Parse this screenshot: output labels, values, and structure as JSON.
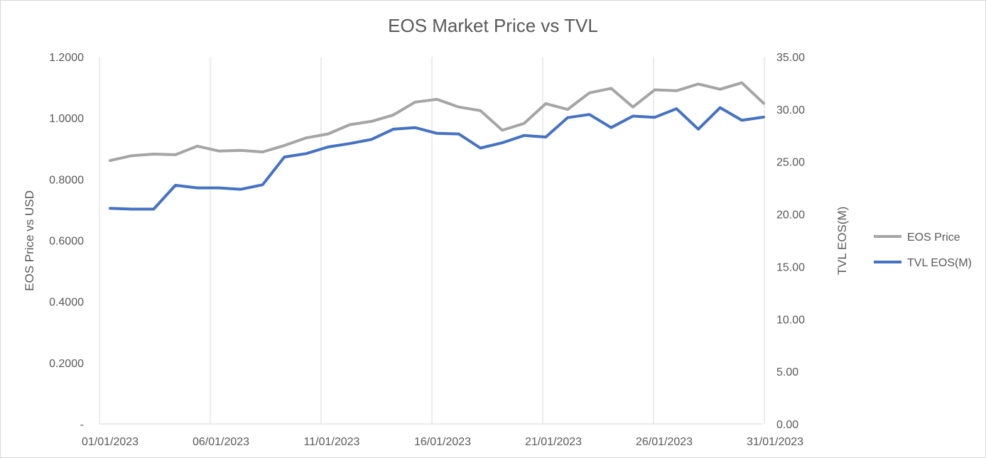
{
  "chart_data": {
    "type": "line",
    "title": "EOS Market Price vs TVL",
    "ylabel": "EOS Price vs USD",
    "y2label": "TVL EOS(M)",
    "xlabel": "",
    "x": [
      "01/01/2023",
      "02/01/2023",
      "03/01/2023",
      "04/01/2023",
      "05/01/2023",
      "06/01/2023",
      "07/01/2023",
      "08/01/2023",
      "09/01/2023",
      "10/01/2023",
      "11/01/2023",
      "12/01/2023",
      "13/01/2023",
      "14/01/2023",
      "15/01/2023",
      "16/01/2023",
      "17/01/2023",
      "18/01/2023",
      "19/01/2023",
      "20/01/2023",
      "21/01/2023",
      "22/01/2023",
      "23/01/2023",
      "24/01/2023",
      "25/01/2023",
      "26/01/2023",
      "27/01/2023",
      "28/01/2023",
      "29/01/2023",
      "30/01/2023",
      "31/01/2023"
    ],
    "x_tick_labels": [
      "01/01/2023",
      "06/01/2023",
      "11/01/2023",
      "16/01/2023",
      "21/01/2023",
      "26/01/2023",
      "31/01/2023"
    ],
    "ylim": [
      0,
      1.2
    ],
    "y_tick_labels": [
      "-",
      "0.2000",
      "0.4000",
      "0.6000",
      "0.8000",
      "1.0000",
      "1.2000"
    ],
    "y2lim": [
      0,
      35
    ],
    "y2_tick_labels": [
      "0.00",
      "5.00",
      "10.00",
      "15.00",
      "20.00",
      "25.00",
      "30.00",
      "35.00"
    ],
    "grid": "vertical",
    "legend_position": "right",
    "series": [
      {
        "name": "EOS Price",
        "axis": "left",
        "color": "#a5a5a5",
        "values": [
          0.861,
          0.877,
          0.882,
          0.88,
          0.908,
          0.892,
          0.894,
          0.889,
          0.91,
          0.935,
          0.948,
          0.978,
          0.989,
          1.01,
          1.052,
          1.061,
          1.036,
          1.024,
          0.96,
          0.982,
          1.047,
          1.028,
          1.082,
          1.097,
          1.036,
          1.092,
          1.089,
          1.111,
          1.094,
          1.115,
          1.048
        ]
      },
      {
        "name": "TVL EOS(M)",
        "axis": "right",
        "color": "#4472c4",
        "values": [
          20.55,
          20.48,
          20.48,
          22.75,
          22.5,
          22.5,
          22.37,
          22.8,
          25.45,
          25.77,
          26.4,
          26.73,
          27.13,
          28.1,
          28.25,
          27.7,
          27.65,
          26.3,
          26.8,
          27.5,
          27.35,
          29.2,
          29.5,
          28.25,
          29.35,
          29.23,
          30.05,
          28.1,
          30.15,
          28.95,
          29.25
        ]
      }
    ]
  }
}
